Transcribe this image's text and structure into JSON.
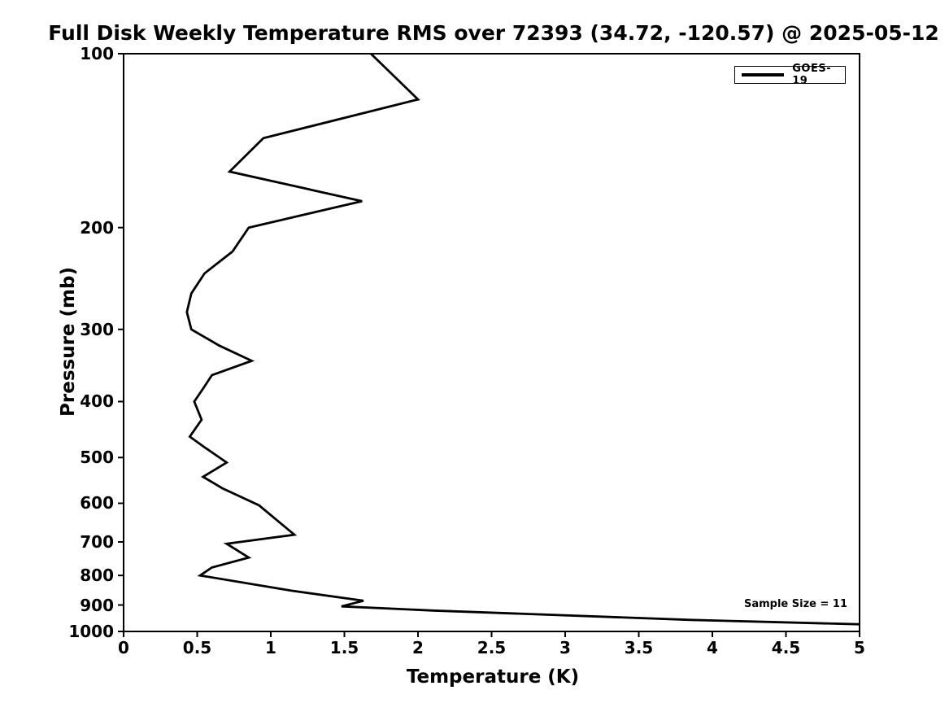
{
  "title": "Full Disk Weekly Temperature RMS over 72393 (34.72, -120.57) @ 2025-05-12",
  "colors": {
    "line": "#000000",
    "background": "#ffffff",
    "text": "#000000"
  },
  "legend": {
    "label": "GOES-19",
    "position": "top-right"
  },
  "annotation": {
    "text": "Sample Size = 11"
  },
  "chart_data": {
    "type": "line",
    "title": "Full Disk Weekly Temperature RMS over 72393 (34.72, -120.57) @ 2025-05-12",
    "xlabel": "Temperature (K)",
    "ylabel": "Pressure (mb)",
    "xlim": [
      0,
      5
    ],
    "ylim": [
      100,
      1000
    ],
    "yscale": "log",
    "y_inverted": true,
    "grid": false,
    "legend_position": "top-right",
    "xticks": [
      0,
      0.5,
      1,
      1.5,
      2,
      2.5,
      3,
      3.5,
      4,
      4.5,
      5
    ],
    "xtick_labels": [
      "0",
      "0.5",
      "1",
      "1.5",
      "2",
      "2.5",
      "3",
      "3.5",
      "4",
      "4.5",
      "5"
    ],
    "yticks": [
      100,
      200,
      300,
      400,
      500,
      600,
      700,
      800,
      900,
      1000
    ],
    "ytick_labels": [
      "100",
      "200",
      "300",
      "400",
      "500",
      "600",
      "700",
      "800",
      "900",
      "1000"
    ],
    "series": [
      {
        "name": "GOES-19",
        "color": "#000000",
        "line_width": 2.8,
        "pressure_mb": [
          100,
          120,
          140,
          160,
          180,
          200,
          220,
          240,
          260,
          280,
          300,
          320,
          340,
          360,
          380,
          400,
          430,
          460,
          480,
          510,
          540,
          565,
          605,
          680,
          705,
          745,
          775,
          800,
          850,
          885,
          905,
          920,
          955,
          972
        ],
        "rms_k": [
          1.68,
          2.0,
          0.95,
          0.72,
          1.62,
          0.85,
          0.74,
          0.55,
          0.46,
          0.43,
          0.46,
          0.65,
          0.87,
          0.6,
          0.54,
          0.48,
          0.53,
          0.45,
          0.55,
          0.7,
          0.54,
          0.67,
          0.92,
          1.16,
          0.7,
          0.85,
          0.6,
          0.52,
          1.14,
          1.63,
          1.48,
          2.1,
          3.85,
          5.0
        ]
      }
    ],
    "annotations": [
      {
        "text": "Sample Size = 11",
        "x_k": 4.55,
        "pressure_mb": 905
      }
    ]
  }
}
